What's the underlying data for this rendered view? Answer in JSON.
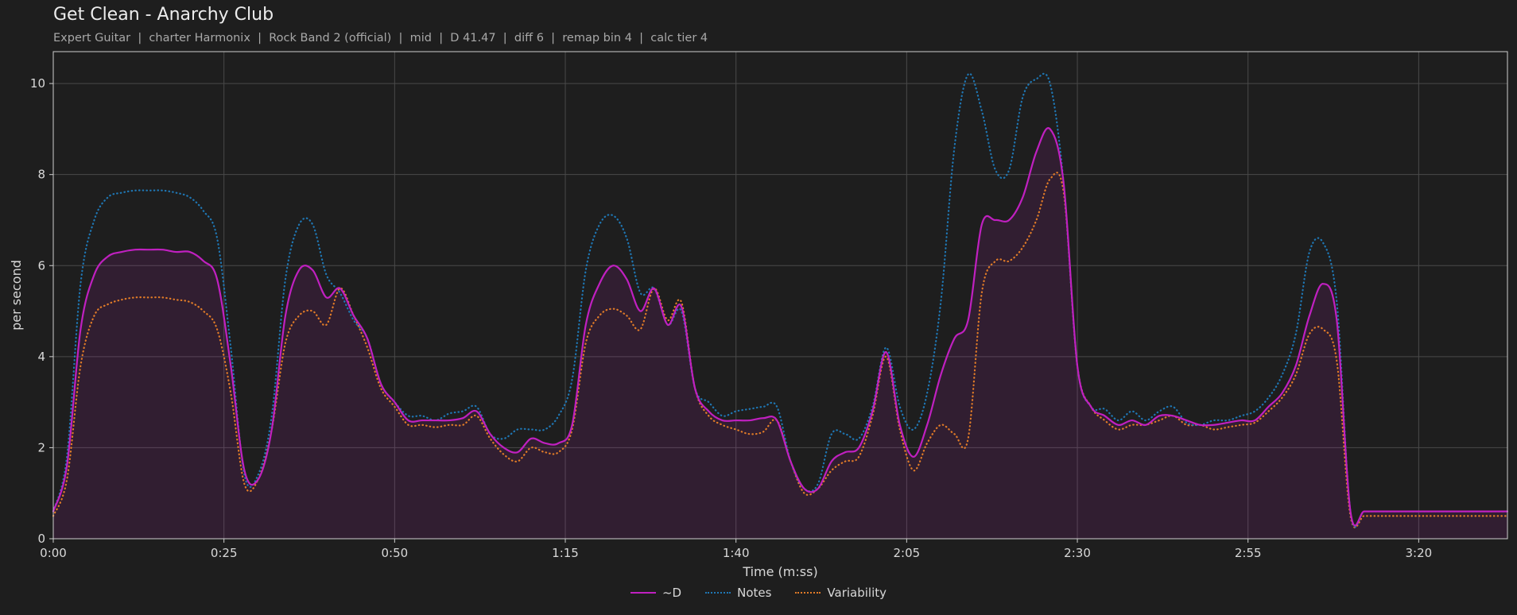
{
  "header": {
    "title": "Get Clean - Anarchy Club",
    "subtitle": "Expert Guitar  |  charter Harmonix  |  Rock Band 2 (official)  |  mid  |  D 41.47  |  diff 6  |  remap bin 4  |  calc tier 4"
  },
  "chart_data": {
    "type": "line",
    "xlabel": "Time (m:ss)",
    "ylabel": "per second",
    "xlim": [
      0,
      213
    ],
    "ylim": [
      0,
      10.7
    ],
    "x_ticks": [
      {
        "value": 0,
        "label": "0:00"
      },
      {
        "value": 25,
        "label": "0:25"
      },
      {
        "value": 50,
        "label": "0:50"
      },
      {
        "value": 75,
        "label": "1:15"
      },
      {
        "value": 100,
        "label": "1:40"
      },
      {
        "value": 125,
        "label": "2:05"
      },
      {
        "value": 150,
        "label": "2:30"
      },
      {
        "value": 175,
        "label": "2:55"
      },
      {
        "value": 200,
        "label": "3:20"
      }
    ],
    "y_ticks": [
      0,
      2,
      4,
      6,
      8,
      10
    ],
    "grid": true,
    "legend_position": "bottom-center",
    "x": [
      0,
      2,
      4,
      6,
      8,
      10,
      12,
      14,
      16,
      18,
      20,
      22,
      24,
      26,
      28,
      30,
      32,
      34,
      36,
      38,
      40,
      42,
      44,
      46,
      48,
      50,
      52,
      54,
      56,
      58,
      60,
      62,
      64,
      66,
      68,
      70,
      72,
      74,
      76,
      78,
      80,
      82,
      84,
      86,
      88,
      90,
      92,
      94,
      96,
      98,
      100,
      102,
      104,
      106,
      108,
      110,
      112,
      114,
      116,
      118,
      120,
      122,
      124,
      126,
      128,
      130,
      132,
      134,
      136,
      138,
      140,
      142,
      144,
      146,
      148,
      150,
      152,
      154,
      156,
      158,
      160,
      162,
      164,
      166,
      168,
      170,
      172,
      174,
      176,
      178,
      180,
      182,
      184,
      186,
      188,
      190,
      192,
      194,
      196,
      198,
      200,
      202,
      204,
      206,
      208,
      210,
      213
    ],
    "series": [
      {
        "name": "~D",
        "color": "#c020c0",
        "style": "solid",
        "values": [
          0.6,
          1.6,
          4.6,
          5.8,
          6.2,
          6.3,
          6.35,
          6.35,
          6.35,
          6.3,
          6.3,
          6.1,
          5.7,
          3.8,
          1.5,
          1.3,
          2.4,
          4.9,
          5.9,
          5.9,
          5.3,
          5.5,
          4.9,
          4.4,
          3.4,
          3.0,
          2.6,
          2.6,
          2.6,
          2.6,
          2.65,
          2.8,
          2.3,
          2.0,
          1.9,
          2.2,
          2.1,
          2.1,
          2.5,
          4.7,
          5.6,
          6.0,
          5.7,
          5.0,
          5.5,
          4.7,
          5.1,
          3.3,
          2.8,
          2.6,
          2.6,
          2.6,
          2.65,
          2.6,
          1.7,
          1.1,
          1.1,
          1.7,
          1.9,
          2.0,
          2.8,
          4.1,
          2.5,
          1.8,
          2.5,
          3.6,
          4.4,
          4.8,
          6.9,
          7.0,
          7.0,
          7.5,
          8.5,
          9.0,
          7.8,
          3.8,
          2.9,
          2.7,
          2.5,
          2.6,
          2.5,
          2.7,
          2.7,
          2.6,
          2.5,
          2.5,
          2.55,
          2.6,
          2.6,
          2.9,
          3.2,
          3.8,
          4.9,
          5.6,
          4.8,
          0.6,
          0.6,
          0.6,
          0.6,
          0.6,
          0.6,
          0.6,
          0.6,
          0.6,
          0.6,
          0.6,
          0.6
        ]
      },
      {
        "name": "Notes",
        "color": "#1f77b4",
        "style": "dotted",
        "values": [
          0.6,
          1.8,
          5.6,
          7.0,
          7.5,
          7.6,
          7.65,
          7.65,
          7.65,
          7.6,
          7.5,
          7.2,
          6.6,
          4.2,
          1.4,
          1.4,
          2.7,
          5.7,
          6.9,
          6.9,
          5.8,
          5.4,
          4.8,
          4.4,
          3.4,
          3.0,
          2.7,
          2.7,
          2.6,
          2.75,
          2.8,
          2.9,
          2.3,
          2.2,
          2.4,
          2.4,
          2.4,
          2.7,
          3.5,
          5.9,
          6.9,
          7.1,
          6.6,
          5.4,
          5.5,
          4.7,
          5.0,
          3.3,
          3.0,
          2.7,
          2.8,
          2.85,
          2.9,
          2.9,
          1.7,
          1.1,
          1.2,
          2.3,
          2.3,
          2.2,
          2.9,
          4.2,
          2.9,
          2.4,
          3.2,
          5.2,
          8.6,
          10.2,
          9.4,
          8.1,
          8.1,
          9.7,
          10.1,
          10.0,
          7.8,
          3.8,
          2.9,
          2.85,
          2.6,
          2.8,
          2.6,
          2.8,
          2.9,
          2.55,
          2.5,
          2.6,
          2.6,
          2.7,
          2.8,
          3.1,
          3.6,
          4.5,
          6.3,
          6.5,
          5.2,
          0.6,
          0.6,
          0.6,
          0.6,
          0.6,
          0.6,
          0.6,
          0.6,
          0.6,
          0.6,
          0.6,
          0.6
        ]
      },
      {
        "name": "Variability",
        "color": "#e07b28",
        "style": "dotted",
        "values": [
          0.5,
          1.3,
          3.8,
          4.9,
          5.15,
          5.25,
          5.3,
          5.3,
          5.3,
          5.25,
          5.2,
          5.0,
          4.6,
          3.2,
          1.2,
          1.3,
          2.4,
          4.3,
          4.9,
          5.0,
          4.7,
          5.5,
          4.9,
          4.2,
          3.3,
          2.9,
          2.5,
          2.5,
          2.45,
          2.5,
          2.5,
          2.7,
          2.2,
          1.85,
          1.7,
          2.0,
          1.9,
          1.9,
          2.4,
          4.3,
          4.9,
          5.05,
          4.9,
          4.6,
          5.5,
          4.8,
          5.2,
          3.3,
          2.7,
          2.5,
          2.4,
          2.3,
          2.35,
          2.6,
          1.7,
          1.0,
          1.1,
          1.5,
          1.7,
          1.8,
          2.7,
          4.0,
          2.4,
          1.5,
          2.1,
          2.5,
          2.3,
          2.2,
          5.4,
          6.1,
          6.1,
          6.4,
          7.0,
          7.9,
          7.6,
          3.8,
          2.9,
          2.6,
          2.4,
          2.5,
          2.5,
          2.6,
          2.7,
          2.5,
          2.5,
          2.4,
          2.45,
          2.5,
          2.55,
          2.8,
          3.1,
          3.6,
          4.5,
          4.6,
          3.9,
          0.5,
          0.5,
          0.5,
          0.5,
          0.5,
          0.5,
          0.5,
          0.5,
          0.5,
          0.5,
          0.5,
          0.5
        ]
      }
    ]
  },
  "legend": {
    "items": [
      {
        "label": "~D",
        "color": "#c020c0",
        "style": "solid"
      },
      {
        "label": "Notes",
        "color": "#1f77b4",
        "style": "dotted"
      },
      {
        "label": "Variability",
        "color": "#e07b28",
        "style": "dotted"
      }
    ]
  }
}
